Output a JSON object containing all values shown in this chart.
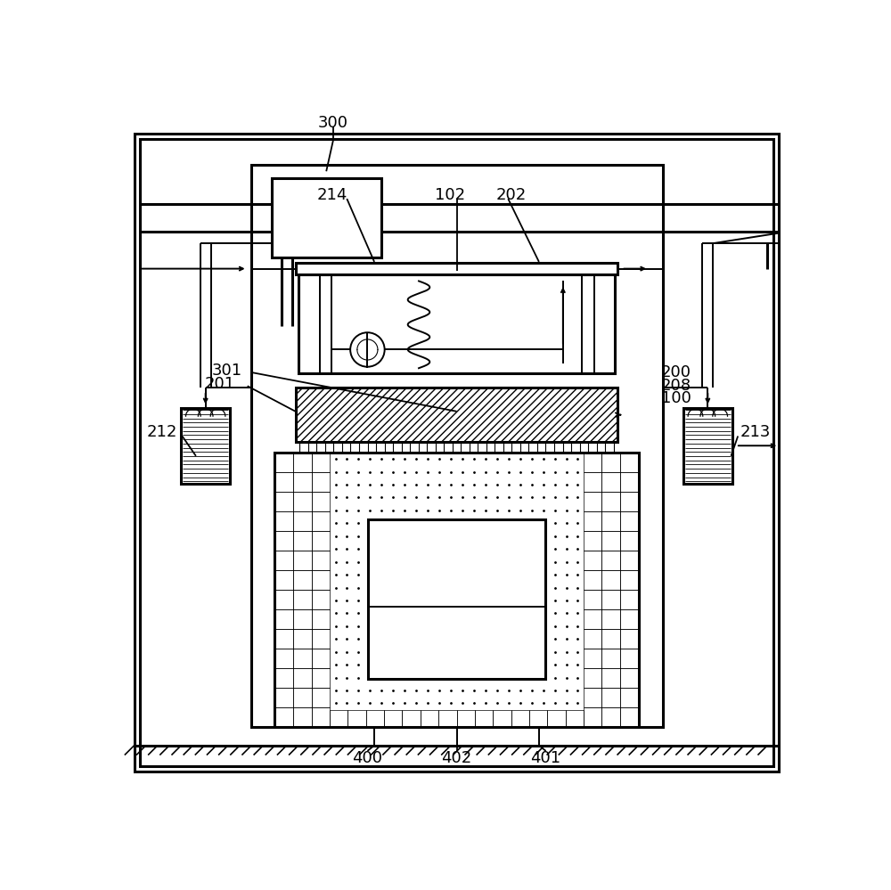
{
  "bg_color": "#ffffff",
  "lc": "#000000",
  "lw": 2.2,
  "thin": 1.4,
  "very_thin": 0.7
}
